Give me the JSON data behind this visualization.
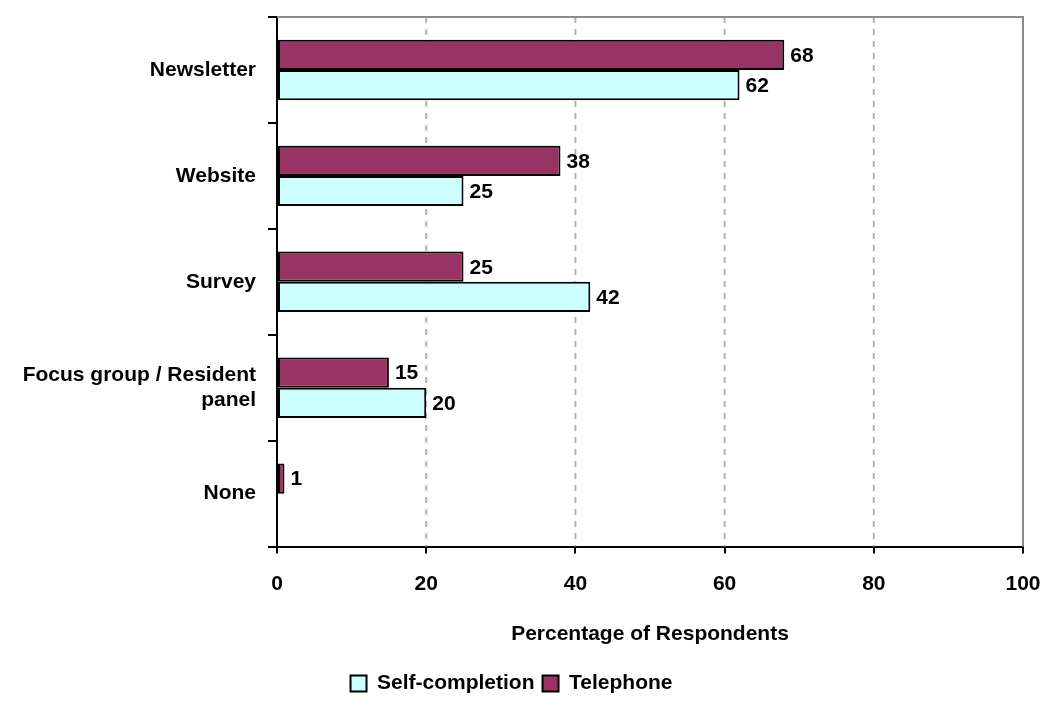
{
  "chart_data": {
    "type": "bar",
    "orientation": "horizontal",
    "categories": [
      "Newsletter",
      "Website",
      "Survey",
      "Focus group / Resident panel",
      "None"
    ],
    "series": [
      {
        "name": "Self-completion",
        "color": "#ccffff",
        "values": [
          62,
          25,
          42,
          20,
          null
        ]
      },
      {
        "name": "Telephone",
        "color": "#993366",
        "values": [
          68,
          38,
          25,
          15,
          1
        ]
      }
    ],
    "xlabel": "Percentage of Respondents",
    "xlim": [
      0,
      100
    ],
    "xticks": [
      0,
      20,
      40,
      60,
      80,
      100
    ],
    "grid": "x",
    "legend": "bottom",
    "data_labels": true
  }
}
